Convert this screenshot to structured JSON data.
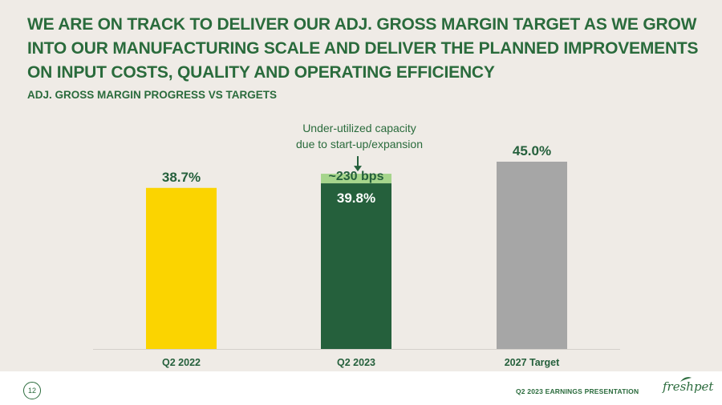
{
  "title": "WE ARE ON TRACK TO DELIVER OUR ADJ. GROSS MARGIN TARGET AS WE GROW INTO OUR MANUFACTURING SCALE AND DELIVER THE PLANNED IMPROVEMENTS ON INPUT COSTS, QUALITY AND OPERATING EFFICIENCY",
  "subtitle": "ADJ. GROSS MARGIN PROGRESS VS TARGETS",
  "footer": {
    "page_number": "12",
    "presentation": "Q2 2023 EARNINGS PRESENTATION",
    "logo": "freshpet"
  },
  "colors": {
    "title_green": "#2a6b3c",
    "yellow": "#fbd400",
    "dark_green": "#25603c",
    "light_green": "#a6d58c",
    "gray": "#a6a6a6"
  },
  "chart_data": {
    "type": "bar",
    "stacked": true,
    "ylim": [
      0,
      50
    ],
    "categories": [
      "Q2 2022",
      "Q2 2023",
      "2027 Target"
    ],
    "series": [
      {
        "name": "Adj. Gross Margin",
        "values": [
          38.7,
          39.8,
          45.0
        ],
        "labels": [
          "38.7%",
          "39.8%",
          "45.0%"
        ],
        "colors": [
          "#fbd400",
          "#25603c",
          "#a6a6a6"
        ]
      },
      {
        "name": "Under-utilized capacity",
        "values": [
          0,
          2.3,
          0
        ],
        "labels": [
          "",
          "~230 bps",
          ""
        ],
        "colors": [
          "",
          "#a6d58c",
          ""
        ]
      }
    ],
    "annotation": {
      "category": "Q2 2023",
      "lines": [
        "Under-utilized capacity",
        "due to start-up/expansion"
      ]
    }
  }
}
